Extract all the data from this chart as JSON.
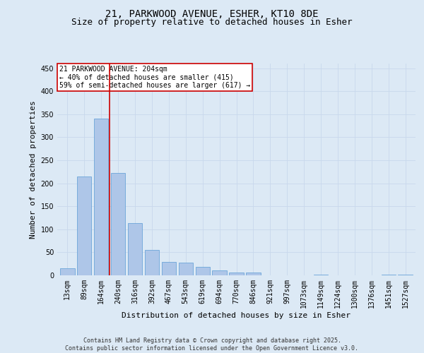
{
  "title_line1": "21, PARKWOOD AVENUE, ESHER, KT10 8DE",
  "title_line2": "Size of property relative to detached houses in Esher",
  "xlabel": "Distribution of detached houses by size in Esher",
  "ylabel": "Number of detached properties",
  "categories": [
    "13sqm",
    "89sqm",
    "164sqm",
    "240sqm",
    "316sqm",
    "392sqm",
    "467sqm",
    "543sqm",
    "619sqm",
    "694sqm",
    "770sqm",
    "846sqm",
    "921sqm",
    "997sqm",
    "1073sqm",
    "1149sqm",
    "1224sqm",
    "1300sqm",
    "1376sqm",
    "1451sqm",
    "1527sqm"
  ],
  "values": [
    15,
    215,
    340,
    222,
    113,
    55,
    29,
    27,
    19,
    10,
    6,
    6,
    0,
    0,
    0,
    2,
    0,
    0,
    0,
    2,
    2
  ],
  "bar_color": "#aec6e8",
  "bar_edge_color": "#5b9bd5",
  "red_line_x": 2.5,
  "annotation_text": "21 PARKWOOD AVENUE: 204sqm\n← 40% of detached houses are smaller (415)\n59% of semi-detached houses are larger (617) →",
  "annotation_box_color": "#ffffff",
  "annotation_box_edge_color": "#cc0000",
  "ylim": [
    0,
    460
  ],
  "yticks": [
    0,
    50,
    100,
    150,
    200,
    250,
    300,
    350,
    400,
    450
  ],
  "grid_color": "#c8d8ec",
  "background_color": "#dce9f5",
  "plot_background_color": "#dce9f5",
  "footer_text": "Contains HM Land Registry data © Crown copyright and database right 2025.\nContains public sector information licensed under the Open Government Licence v3.0.",
  "title_fontsize": 10,
  "subtitle_fontsize": 9,
  "axis_label_fontsize": 8,
  "tick_fontsize": 7,
  "annotation_fontsize": 7
}
